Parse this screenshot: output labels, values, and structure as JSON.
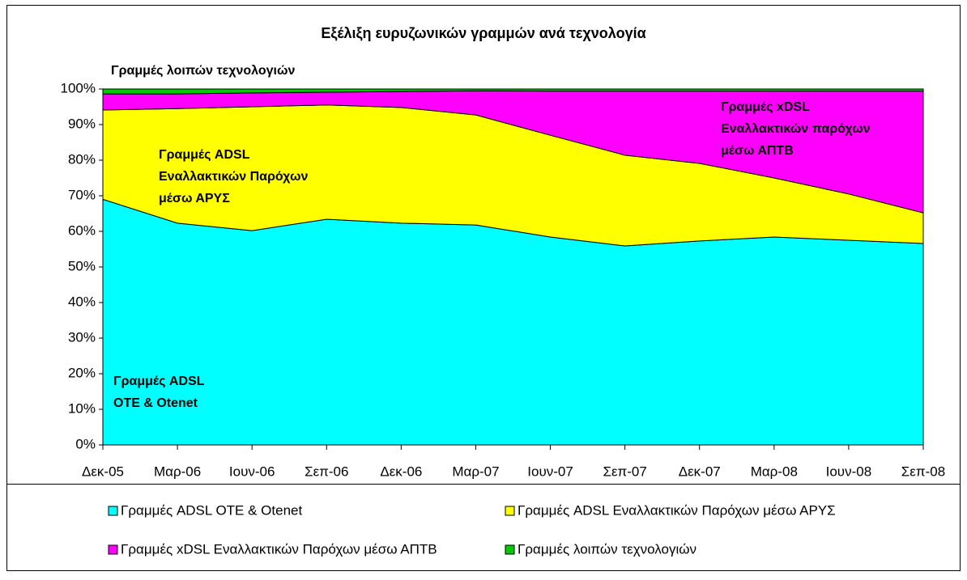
{
  "chart_data": {
    "type": "stacked_area",
    "title": "Εξέλιξη ευρυζωνικών γραμμών ανά τεχνολογία",
    "categories": [
      "Δεκ-05",
      "Μαρ-06",
      "Ιουν-06",
      "Σεπ-06",
      "Δεκ-06",
      "Μαρ-07",
      "Ιουν-07",
      "Σεπ-07",
      "Δεκ-07",
      "Μαρ-08",
      "Ιουν-08",
      "Σεπ-08"
    ],
    "series": [
      {
        "name": "Γραμμές ADSL ΟΤΕ & Otenet",
        "color": "#00ffff",
        "values": [
          69,
          62.3,
          60.2,
          63.4,
          62.3,
          61.8,
          58.4,
          55.9,
          57.3,
          58.4,
          57.5,
          56.6
        ]
      },
      {
        "name": "Γραμμές ADSL Εναλλακτικών Παρόχων μέσω ΑΡΥΣ",
        "color": "#ffff00",
        "values": [
          25.1,
          32.2,
          34.8,
          32.1,
          32.5,
          30.9,
          28.6,
          25.5,
          21.8,
          16.6,
          13,
          8.6
        ]
      },
      {
        "name": "Γραμμές xDSL Εναλλακτικών Παρόχων μέσω ΑΠΤΒ",
        "color": "#ff00ff",
        "values": [
          4.5,
          4.1,
          3.9,
          3.6,
          4.5,
          6.8,
          12.4,
          18,
          20.3,
          24.4,
          28.9,
          34.2
        ]
      },
      {
        "name": "Γραμμές λοιπών τεχνολογιών",
        "color": "#00cc00",
        "values": [
          1.4,
          1.4,
          1.1,
          0.9,
          0.7,
          0.5,
          0.6,
          0.6,
          0.6,
          0.6,
          0.6,
          0.6
        ]
      }
    ],
    "ylim": [
      0,
      100
    ],
    "yticks": [
      {
        "value": 0,
        "label": "0%"
      },
      {
        "value": 10,
        "label": "10%"
      },
      {
        "value": 20,
        "label": "20%"
      },
      {
        "value": 30,
        "label": "30%"
      },
      {
        "value": 40,
        "label": "40%"
      },
      {
        "value": 50,
        "label": "50%"
      },
      {
        "value": 60,
        "label": "60%"
      },
      {
        "value": 70,
        "label": "70%"
      },
      {
        "value": 80,
        "label": "80%"
      },
      {
        "value": 90,
        "label": "90%"
      },
      {
        "value": 100,
        "label": "100%"
      }
    ],
    "annotations": [
      {
        "lines": [
          "Γραμμές λοιπών τεχνολογιών"
        ]
      },
      {
        "lines": [
          "Γραμμές ADSL",
          "Εναλλακτικών Παρόχων",
          "μέσω ΑΡΥΣ"
        ]
      },
      {
        "lines": [
          "Γραμμές xDSL",
          "Εναλλακτικών παρόχων",
          "μέσω ΑΠΤΒ"
        ]
      },
      {
        "lines": [
          "Γραμμές ADSL",
          "ΟΤΕ & Otenet"
        ]
      }
    ],
    "legend": "bottom"
  }
}
